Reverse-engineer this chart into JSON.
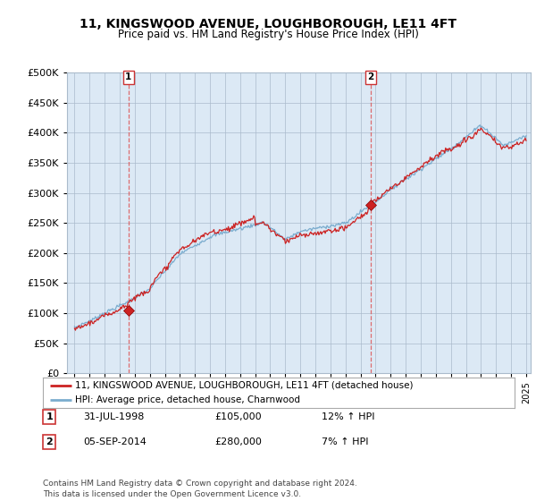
{
  "title_line1": "11, KINGSWOOD AVENUE, LOUGHBOROUGH, LE11 4FT",
  "title_line2": "Price paid vs. HM Land Registry's House Price Index (HPI)",
  "legend_line1": "11, KINGSWOOD AVENUE, LOUGHBOROUGH, LE11 4FT (detached house)",
  "legend_line2": "HPI: Average price, detached house, Charnwood",
  "annotation1_label": "1",
  "annotation1_date": "31-JUL-1998",
  "annotation1_price": "£105,000",
  "annotation1_hpi": "12% ↑ HPI",
  "annotation2_label": "2",
  "annotation2_date": "05-SEP-2014",
  "annotation2_price": "£280,000",
  "annotation2_hpi": "7% ↑ HPI",
  "footer": "Contains HM Land Registry data © Crown copyright and database right 2024.\nThis data is licensed under the Open Government Licence v3.0.",
  "sale1_year": 1998.58,
  "sale1_value": 105000,
  "sale2_year": 2014.68,
  "sale2_value": 280000,
  "ylim_min": 0,
  "ylim_max": 500000,
  "ytick_step": 50000,
  "bg_color": "#ffffff",
  "plot_bg_color": "#dce9f5",
  "grid_color": "#aabbcc",
  "red_color": "#cc2222",
  "blue_color": "#7aacce",
  "vline_color": "#dd5555",
  "vline_style": "--",
  "box_edge_color": "#cc3333",
  "marker_shape": "D",
  "marker_size": 6,
  "year_start": 1995,
  "year_end": 2025,
  "n_points": 500
}
